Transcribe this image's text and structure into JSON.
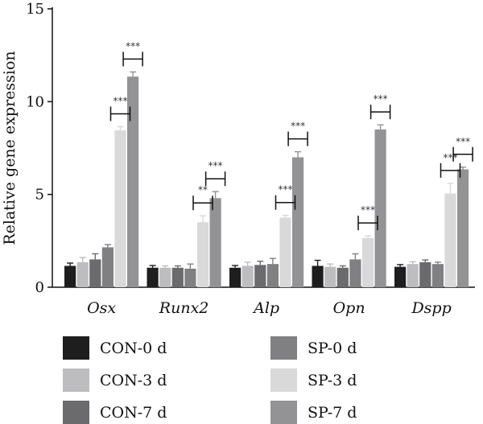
{
  "chart_data": {
    "type": "bar",
    "ylabel": "Relative gene expression",
    "ylim": [
      0,
      15
    ],
    "yticks": [
      "0",
      "5",
      "10",
      "15"
    ],
    "categories": [
      "Osx",
      "Runx2",
      "Alp",
      "Opn",
      "Dspp"
    ],
    "series": [
      {
        "name": "CON-0 d",
        "color": "#1e1e1e",
        "values": [
          1.15,
          1.05,
          1.05,
          1.15,
          1.1
        ],
        "errors": [
          0.15,
          0.12,
          0.12,
          0.3,
          0.12
        ]
      },
      {
        "name": "CON-3 d",
        "color": "#bdbdbf",
        "values": [
          1.35,
          1.05,
          1.15,
          1.1,
          1.25
        ],
        "errors": [
          0.25,
          0.1,
          0.2,
          0.15,
          0.12
        ]
      },
      {
        "name": "CON-7 d",
        "color": "#6b6b6d",
        "values": [
          1.5,
          1.05,
          1.2,
          1.05,
          1.35
        ],
        "errors": [
          0.3,
          0.1,
          0.2,
          0.1,
          0.12
        ]
      },
      {
        "name": "SP-0 d",
        "color": "#808082",
        "values": [
          2.15,
          1.0,
          1.25,
          1.5,
          1.25
        ],
        "errors": [
          0.15,
          0.25,
          0.3,
          0.3,
          0.1
        ]
      },
      {
        "name": "SP-3 d",
        "color": "#d9d9da",
        "values": [
          8.45,
          3.5,
          3.75,
          2.65,
          5.05
        ],
        "errors": [
          0.2,
          0.35,
          0.12,
          0.12,
          0.55
        ]
      },
      {
        "name": "SP-7 d",
        "color": "#939395",
        "values": [
          11.35,
          4.8,
          7.0,
          8.5,
          6.35
        ],
        "errors": [
          0.25,
          0.35,
          0.3,
          0.25,
          0.12
        ]
      }
    ],
    "significance": [
      {
        "category": "Osx",
        "series": "SP-3 d",
        "label": "***"
      },
      {
        "category": "Osx",
        "series": "SP-7 d",
        "label": "***"
      },
      {
        "category": "Runx2",
        "series": "SP-3 d",
        "label": "**"
      },
      {
        "category": "Runx2",
        "series": "SP-7 d",
        "label": "***"
      },
      {
        "category": "Alp",
        "series": "SP-3 d",
        "label": "***"
      },
      {
        "category": "Alp",
        "series": "SP-7 d",
        "label": "***"
      },
      {
        "category": "Opn",
        "series": "SP-3 d",
        "label": "***"
      },
      {
        "category": "Opn",
        "series": "SP-7 d",
        "label": "***"
      },
      {
        "category": "Dspp",
        "series": "SP-3 d",
        "label": "***"
      },
      {
        "category": "Dspp",
        "series": "SP-7 d",
        "label": "***"
      }
    ],
    "legend_position": "bottom"
  }
}
